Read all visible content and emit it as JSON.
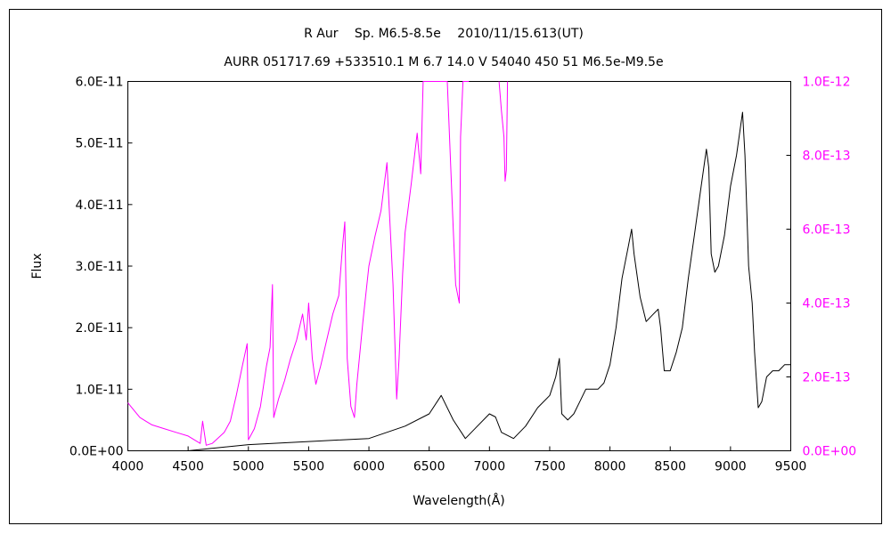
{
  "chart_data": {
    "type": "line",
    "title": "R Aur　 Sp. M6.5-8.5e　 2010/11/15.613(UT)",
    "subtitle": "AURR 051717.69 +533510.1 M 6.7 14.0 V 54040 450 51 M6.5e-M9.5e",
    "xlabel": "Wavelength(Å)",
    "ylabel": "Flux",
    "xlim": [
      4000,
      9500
    ],
    "ylim": [
      0,
      6e-11
    ],
    "y2lim": [
      0,
      1e-12
    ],
    "x_ticks": [
      "4000",
      "4500",
      "5000",
      "5500",
      "6000",
      "6500",
      "7000",
      "7500",
      "8000",
      "8500",
      "9000",
      "9500"
    ],
    "y_ticks": [
      "0.0E+00",
      "1.0E-11",
      "2.0E-11",
      "3.0E-11",
      "4.0E-11",
      "5.0E-11",
      "6.0E-11"
    ],
    "y2_ticks": [
      "0.0E+00",
      "2.0E-13",
      "4.0E-13",
      "6.0E-13",
      "8.0E-13",
      "1.0E-12"
    ],
    "grid": false,
    "legend": "none",
    "colors": {
      "left_axis": "#000000",
      "right_axis": "#ff00ff",
      "frame": "#000000"
    },
    "series": [
      {
        "axis": "left",
        "color": "#000000",
        "x": [
          4000,
          4500,
          5000,
          5500,
          6000,
          6300,
          6500,
          6600,
          6700,
          6800,
          6900,
          7000,
          7050,
          7100,
          7200,
          7300,
          7400,
          7500,
          7550,
          7580,
          7600,
          7650,
          7700,
          7750,
          7800,
          7850,
          7900,
          7950,
          8000,
          8050,
          8100,
          8150,
          8180,
          8200,
          8250,
          8300,
          8350,
          8400,
          8420,
          8450,
          8500,
          8550,
          8600,
          8650,
          8700,
          8750,
          8800,
          8820,
          8840,
          8870,
          8900,
          8950,
          9000,
          9050,
          9100,
          9120,
          9150,
          9180,
          9200,
          9230,
          9260,
          9300,
          9350,
          9400,
          9450,
          9500
        ],
        "values": [
          0,
          0,
          1e-12,
          1.5e-12,
          2e-12,
          4e-12,
          6e-12,
          9e-12,
          5e-12,
          2e-12,
          4e-12,
          6e-12,
          5.5e-12,
          3e-12,
          2e-12,
          4e-12,
          7e-12,
          9e-12,
          1.2e-11,
          1.5e-11,
          6e-12,
          5e-12,
          6e-12,
          8e-12,
          1e-11,
          1e-11,
          1e-11,
          1.1e-11,
          1.4e-11,
          2e-11,
          2.8e-11,
          3.3e-11,
          3.6e-11,
          3.2e-11,
          2.5e-11,
          2.1e-11,
          2.2e-11,
          2.3e-11,
          2e-11,
          1.3e-11,
          1.3e-11,
          1.6e-11,
          2e-11,
          2.8e-11,
          3.5e-11,
          4.2e-11,
          4.9e-11,
          4.6e-11,
          3.2e-11,
          2.9e-11,
          3e-11,
          3.5e-11,
          4.3e-11,
          4.8e-11,
          5.5e-11,
          4.8e-11,
          3e-11,
          2.4e-11,
          1.6e-11,
          7e-12,
          8e-12,
          1.2e-11,
          1.3e-11,
          1.3e-11,
          1.4e-11,
          1.4e-11
        ]
      },
      {
        "axis": "right",
        "color": "#ff00ff",
        "x": [
          4000,
          4050,
          4100,
          4150,
          4200,
          4300,
          4400,
          4500,
          4550,
          4600,
          4620,
          4650,
          4700,
          4750,
          4800,
          4850,
          4900,
          4950,
          4990,
          5000,
          5050,
          5100,
          5150,
          5180,
          5200,
          5210,
          5250,
          5300,
          5350,
          5400,
          5450,
          5480,
          5500,
          5530,
          5560,
          5600,
          5650,
          5700,
          5750,
          5780,
          5800,
          5820,
          5850,
          5880,
          5900,
          5950,
          6000,
          6050,
          6100,
          6150,
          6200,
          6230,
          6250,
          6280,
          6300,
          6350,
          6400,
          6430,
          6450,
          6470,
          6480,
          6500,
          6550,
          6600,
          6650,
          6700,
          6720,
          6750,
          6760,
          6780,
          6800,
          6830
        ],
        "values": [
          1.3e-13,
          1.1e-13,
          9e-14,
          8e-14,
          7e-14,
          6e-14,
          5e-14,
          4e-14,
          3e-14,
          2e-14,
          8e-14,
          1.5e-14,
          2e-14,
          3.5e-14,
          5e-14,
          8e-14,
          1.5e-13,
          2.3e-13,
          2.9e-13,
          3e-14,
          6e-14,
          1.2e-13,
          2.3e-13,
          2.8e-13,
          4.5e-13,
          9e-14,
          1.4e-13,
          1.9e-13,
          2.5e-13,
          3e-13,
          3.7e-13,
          3e-13,
          4e-13,
          2.5e-13,
          1.8e-13,
          2.3e-13,
          3e-13,
          3.7e-13,
          4.2e-13,
          5.5e-13,
          6.2e-13,
          2.5e-13,
          1.2e-13,
          9e-14,
          1.8e-13,
          3.5e-13,
          5e-13,
          5.8e-13,
          6.5e-13,
          7.8e-13,
          4.5e-13,
          1.4e-13,
          2.5e-13,
          4.8e-13,
          5.9e-13,
          7.2e-13,
          8.6e-13,
          7.5e-13,
          1e-12,
          1e-12,
          1e-12,
          1e-12,
          1e-12,
          1e-12,
          1e-12,
          6e-13,
          4.5e-13,
          4e-13,
          8.5e-13,
          1e-12,
          1e-12,
          1e-12
        ]
      },
      {
        "axis": "right",
        "color": "#ff00ff",
        "x": [
          7080,
          7100,
          7120,
          7130,
          7140,
          7150
        ],
        "values": [
          1e-12,
          9.2e-13,
          8.5e-13,
          7.3e-13,
          7.6e-13,
          1e-12
        ]
      }
    ]
  }
}
